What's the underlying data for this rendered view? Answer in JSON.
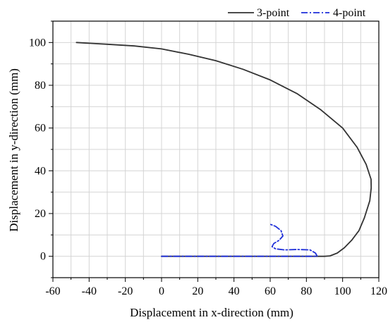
{
  "chart_data": {
    "type": "line",
    "title": "",
    "xlabel": "Displacement in x-direction (mm)",
    "ylabel": "Displacement in y-direction (mm)",
    "xlim": [
      -60,
      120
    ],
    "ylim": [
      -10,
      110
    ],
    "xticks": [
      -60,
      -40,
      -20,
      0,
      20,
      40,
      60,
      80,
      100,
      120
    ],
    "yticks": [
      0,
      20,
      40,
      60,
      80,
      100
    ],
    "x_minor_step": 10,
    "y_minor_step": 10,
    "grid": true,
    "legend_position": "top-right",
    "series": [
      {
        "name": "3-point",
        "color": "#333333",
        "style": "solid",
        "points": [
          [
            -47,
            100
          ],
          [
            -30,
            99.2
          ],
          [
            -15,
            98.4
          ],
          [
            0,
            97
          ],
          [
            15,
            94.5
          ],
          [
            30,
            91.5
          ],
          [
            45,
            87.5
          ],
          [
            60,
            82.5
          ],
          [
            75,
            76
          ],
          [
            88,
            68.5
          ],
          [
            100,
            60
          ],
          [
            108,
            51
          ],
          [
            113,
            43
          ],
          [
            115.7,
            36
          ],
          [
            115.8,
            32
          ],
          [
            115,
            26
          ],
          [
            112,
            18
          ],
          [
            109,
            12
          ],
          [
            105,
            7.5
          ],
          [
            101,
            4
          ],
          [
            97,
            1.5
          ],
          [
            93,
            0.2
          ],
          [
            90,
            0
          ],
          [
            70,
            0
          ],
          [
            50,
            0
          ],
          [
            30,
            0
          ],
          [
            10,
            0
          ],
          [
            0,
            0
          ]
        ]
      },
      {
        "name": "4-point",
        "color": "#1f2fd9",
        "style": "dash-dot",
        "points": [
          [
            0,
            0
          ],
          [
            20,
            0
          ],
          [
            40,
            0
          ],
          [
            60,
            0
          ],
          [
            80,
            0
          ],
          [
            86,
            0
          ],
          [
            85,
            1.5
          ],
          [
            82,
            3
          ],
          [
            75,
            3.2
          ],
          [
            68,
            3
          ],
          [
            63,
            3.5
          ],
          [
            61,
            4.5
          ],
          [
            62,
            6
          ],
          [
            65,
            7.5
          ],
          [
            67,
            9.5
          ],
          [
            66,
            12
          ],
          [
            63,
            14
          ],
          [
            60,
            15
          ]
        ]
      }
    ]
  }
}
